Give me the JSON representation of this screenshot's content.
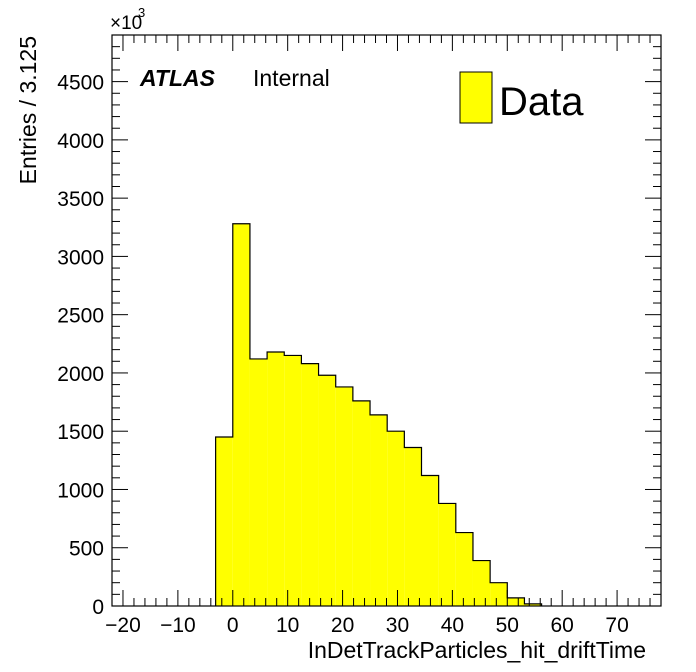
{
  "chart_data": {
    "type": "bar",
    "subtype": "histogram",
    "xlabel": "InDetTrackParticles_hit_driftTime",
    "ylabel": "Entries / 3.125",
    "y_multiplier": {
      "base": "×10",
      "exponent": "3"
    },
    "label_bold": "ATLAS",
    "label_normal": "Internal",
    "xlim": [
      -22,
      78
    ],
    "ylim": [
      0,
      4900
    ],
    "x_ticks": [
      -20,
      -10,
      0,
      10,
      20,
      30,
      40,
      50,
      60,
      70
    ],
    "x_tick_labels": [
      "−20",
      "−10",
      "0",
      "10",
      "20",
      "30",
      "40",
      "50",
      "60",
      "70"
    ],
    "y_ticks": [
      0,
      500,
      1000,
      1500,
      2000,
      2500,
      3000,
      3500,
      4000,
      4500
    ],
    "y_tick_labels": [
      "0",
      "500",
      "1000",
      "1500",
      "2000",
      "2500",
      "3000",
      "3500",
      "4000",
      "4500"
    ],
    "bin_width": 3.125,
    "bin_edges": [
      -3.125,
      0,
      3.125,
      6.25,
      9.375,
      12.5,
      15.625,
      18.75,
      21.875,
      25,
      28.125,
      31.25,
      34.375,
      37.5,
      40.625,
      43.75,
      46.875,
      50,
      53.125,
      56.25
    ],
    "series": [
      {
        "name": "Data",
        "values": [
          1450,
          3280,
          2120,
          2180,
          2150,
          2080,
          1980,
          1880,
          1760,
          1640,
          1500,
          1360,
          1120,
          880,
          630,
          390,
          200,
          70,
          18
        ],
        "color": "#ffff00",
        "edge_color": "#000000"
      }
    ],
    "legend": {
      "entries": [
        "Data"
      ],
      "position": "top-right"
    },
    "grid": false
  }
}
